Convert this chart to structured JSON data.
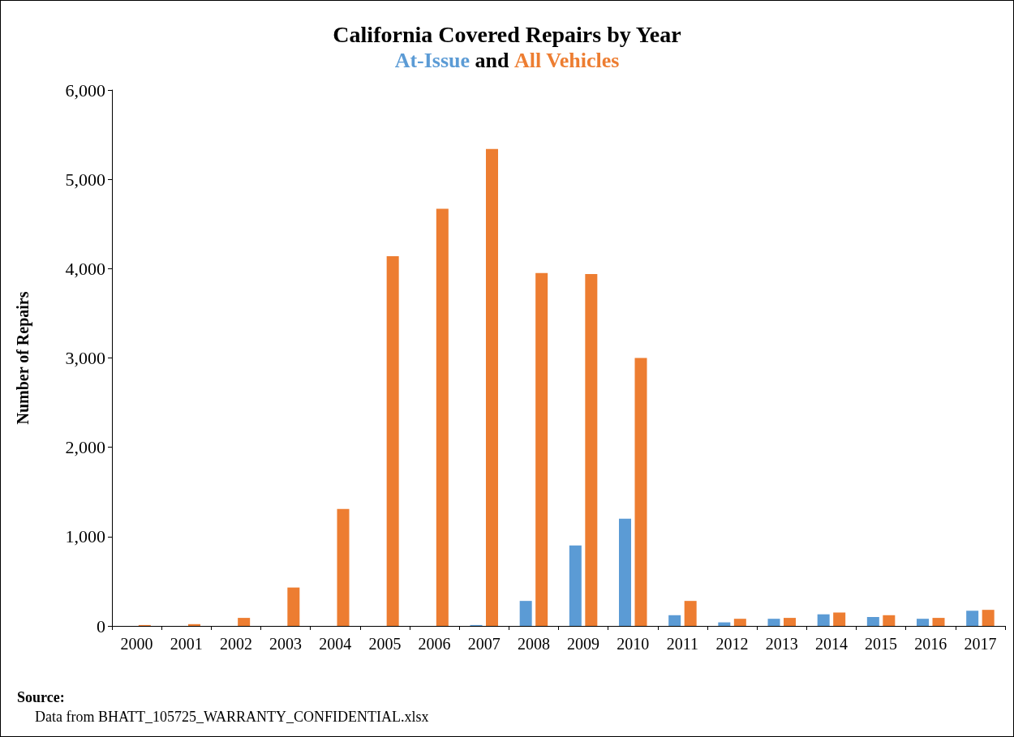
{
  "chart_data": {
    "type": "bar",
    "title": "California Covered Repairs by Year",
    "subtitle": "and",
    "ylabel": "Number of Repairs",
    "categories": [
      "2000",
      "2001",
      "2002",
      "2003",
      "2004",
      "2005",
      "2006",
      "2007",
      "2008",
      "2009",
      "2010",
      "2011",
      "2012",
      "2013",
      "2014",
      "2015",
      "2016",
      "2017"
    ],
    "series": [
      {
        "name": "At-Issue",
        "color": "#5b9bd5",
        "values": [
          0,
          0,
          0,
          0,
          0,
          0,
          0,
          10,
          280,
          900,
          1200,
          120,
          40,
          80,
          130,
          100,
          80,
          170
        ]
      },
      {
        "name": "All Vehicles",
        "color": "#ed7d31",
        "values": [
          10,
          20,
          90,
          430,
          1310,
          4140,
          4670,
          5340,
          3950,
          3940,
          3000,
          280,
          80,
          90,
          150,
          120,
          90,
          180
        ]
      }
    ],
    "ylim": [
      0,
      6000
    ],
    "yticks": [
      0,
      {
        "value": 1000,
        "label": "1,000"
      },
      {
        "value": 2000,
        "label": "2,000"
      },
      {
        "value": 3000,
        "label": "3,000"
      },
      {
        "value": 4000,
        "label": "4,000"
      },
      {
        "value": 5000,
        "label": "5,000"
      },
      {
        "value": 6000,
        "label": "6,000"
      }
    ],
    "grid": false,
    "legend": false,
    "annotations": [
      "Source:",
      "Data from BHATT_105725_WARRANTY_CONFIDENTIAL.xlsx"
    ]
  }
}
